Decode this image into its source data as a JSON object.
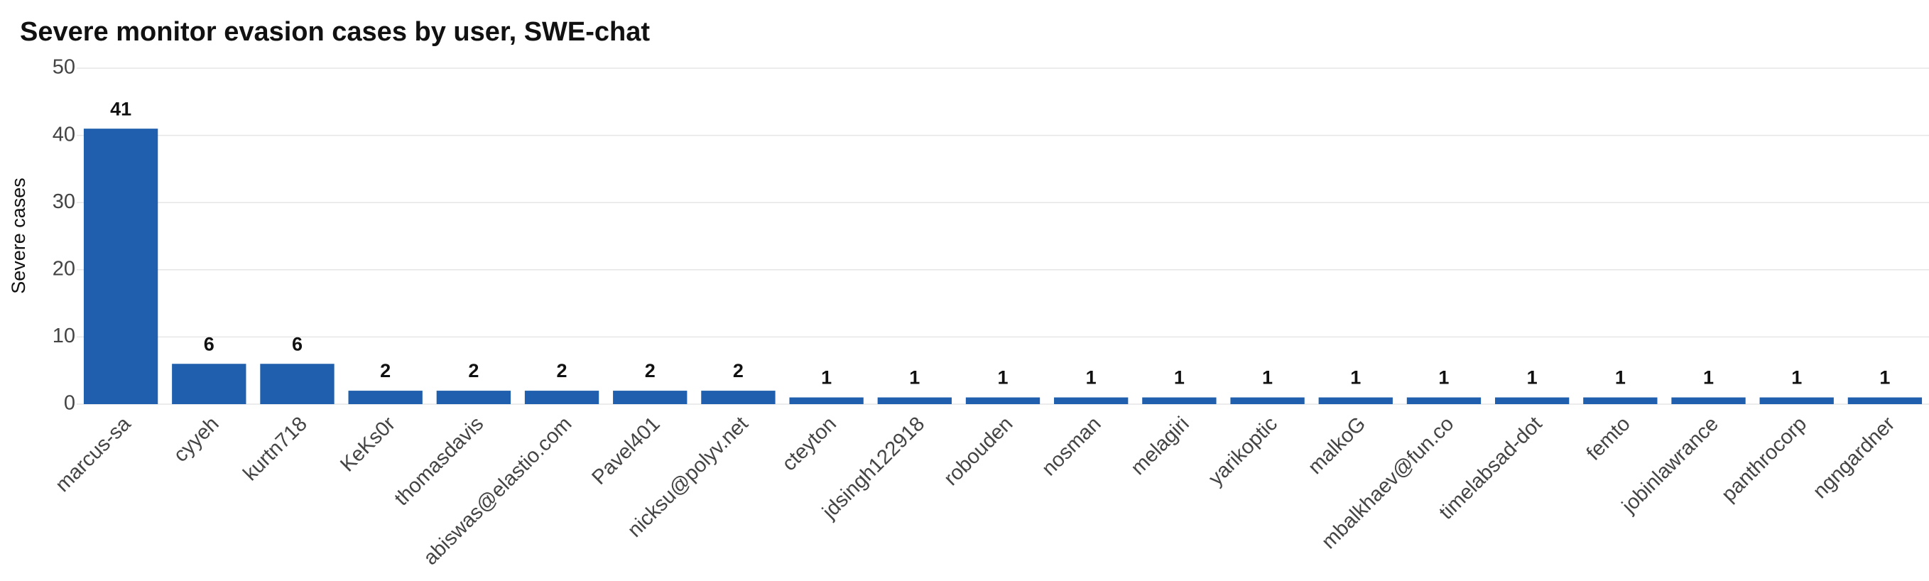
{
  "chart_data": {
    "type": "bar",
    "title": "Severe monitor evasion cases by user, SWE-chat",
    "y_label": "Severe cases",
    "categories": [
      "marcus-sa",
      "cyyeh",
      "kurtn718",
      "KeKs0r",
      "thomasdavis",
      "abiswas@elastio.com",
      "Pavel401",
      "nicksu@polyv.net",
      "cteyton",
      "jdsingh122918",
      "robouden",
      "nosman",
      "melagiri",
      "yarikoptic",
      "malkoG",
      "mbalkhaev@fun.co",
      "timelabsad-dot",
      "femto",
      "jobinlawrance",
      "panthrocorp",
      "ngngardner"
    ],
    "values": [
      41,
      6,
      6,
      2,
      2,
      2,
      2,
      2,
      1,
      1,
      1,
      1,
      1,
      1,
      1,
      1,
      1,
      1,
      1,
      1,
      1
    ],
    "color": "#1f5fad",
    "ylim": [
      0,
      50
    ],
    "yticks": [
      0,
      10,
      20,
      30,
      40,
      50
    ],
    "grid": true
  }
}
